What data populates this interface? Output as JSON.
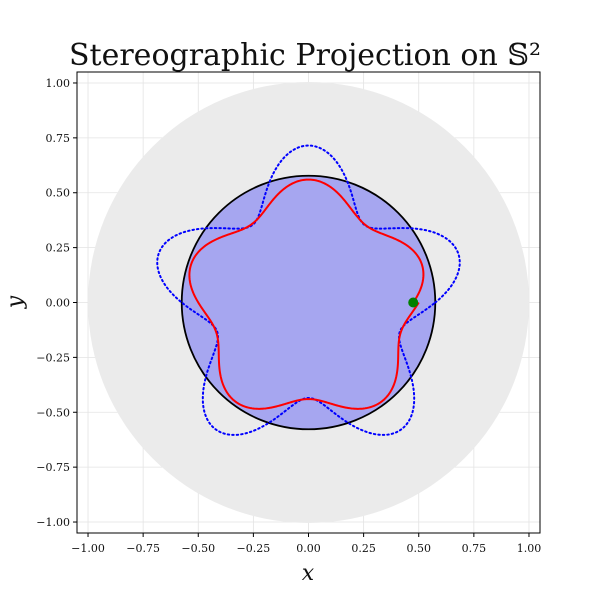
{
  "chart_data": {
    "type": "line",
    "title": "Stereographic Projection on 𝕊²",
    "xlabel": "x",
    "ylabel": "y",
    "xlim": [
      -1.05,
      1.05
    ],
    "ylim": [
      -1.05,
      1.05
    ],
    "grid": true,
    "x_ticks": [
      "−1.00",
      "−0.75",
      "−0.50",
      "−0.25",
      "0.00",
      "0.25",
      "0.50",
      "0.75",
      "1.00"
    ],
    "y_ticks": [
      "−1.00",
      "−0.75",
      "−0.50",
      "−0.25",
      "0.00",
      "0.25",
      "0.50",
      "0.75",
      "1.00"
    ],
    "unit_disk": {
      "radius": 1.0,
      "color": "#ebebeb"
    },
    "projected_disk": {
      "radius": 0.575,
      "fill": "#a6a6f0",
      "edge": "#000000"
    },
    "dotted_curve": {
      "base_radius": 0.575,
      "amplitude": 0.14,
      "lobes": 5,
      "phase_deg": 90,
      "color": "#0000ff",
      "style": "dotted"
    },
    "red_curve": {
      "base_radius": 0.5,
      "amplitude": 0.06,
      "lobes": 5,
      "phase_deg": 90,
      "color": "#ff0000",
      "start_radius": 0.475
    },
    "marker": {
      "x": 0.475,
      "y": 0.0,
      "color": "#008000"
    }
  }
}
